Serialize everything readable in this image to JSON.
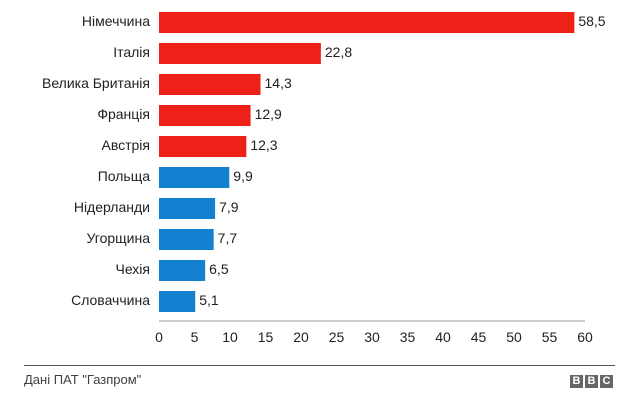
{
  "chart_data": {
    "type": "bar",
    "orientation": "horizontal",
    "categories": [
      "Німеччина",
      "Італія",
      "Велика Британія",
      "Франція",
      "Австрія",
      "Польща",
      "Нідерланди",
      "Угорщина",
      "Чехія",
      "Словаччина"
    ],
    "values": [
      58.5,
      22.8,
      14.3,
      12.9,
      12.3,
      9.9,
      7.9,
      7.7,
      6.5,
      5.1
    ],
    "value_labels": [
      "58,5",
      "22,8",
      "14,3",
      "12,9",
      "12,3",
      "9,9",
      "7,9",
      "7,7",
      "6,5",
      "5,1"
    ],
    "bar_colors": [
      "#ee2118",
      "#ee2118",
      "#ee2118",
      "#ee2118",
      "#ee2118",
      "#1380d0",
      "#1380d0",
      "#1380d0",
      "#1380d0",
      "#1380d0"
    ],
    "xlim": [
      0,
      60
    ],
    "xticks": [
      0,
      5,
      10,
      15,
      20,
      25,
      30,
      35,
      40,
      45,
      50,
      55,
      60
    ],
    "grid": false,
    "title": "",
    "xlabel": "",
    "ylabel": ""
  },
  "footer": {
    "source": "Дані ПАТ \"Газпром\"",
    "logo": [
      "B",
      "B",
      "C"
    ]
  }
}
